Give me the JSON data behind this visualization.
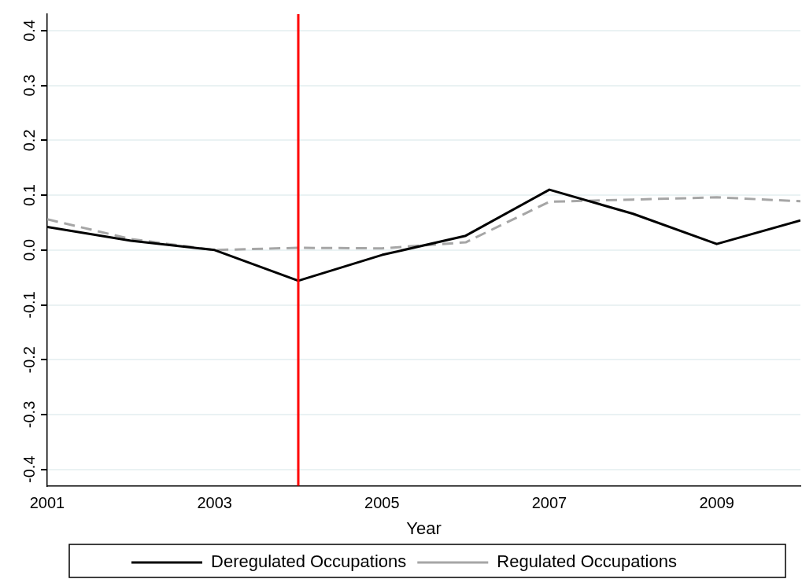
{
  "chart_data": {
    "type": "line",
    "xlabel": "Year",
    "x": [
      2001,
      2002,
      2003,
      2004,
      2005,
      2006,
      2007,
      2008,
      2009,
      2010
    ],
    "series": [
      {
        "name": "Deregulated Occupations",
        "color": "#000000",
        "line_style": "solid",
        "values": [
          0.042,
          0.017,
          0.0,
          -0.056,
          -0.009,
          0.026,
          0.11,
          0.066,
          0.011,
          0.054
        ]
      },
      {
        "name": "Regulated Occupations",
        "color": "#a6a6a6",
        "line_style": "dashed",
        "values": [
          0.056,
          0.02,
          0.0,
          0.004,
          0.003,
          0.014,
          0.088,
          0.092,
          0.096,
          0.089
        ]
      }
    ],
    "xlim": [
      2001,
      2010
    ],
    "xticks": [
      2001,
      2003,
      2005,
      2007,
      2009
    ],
    "ylim": [
      -0.43,
      0.43
    ],
    "yticks": [
      -0.4,
      -0.3,
      -0.2,
      -0.1,
      {
        "value": 0,
        "label": "0.0"
      },
      0.1,
      0.2,
      0.3,
      0.4
    ],
    "ref_lines": [
      {
        "axis": "x",
        "value": 2004,
        "color": "#ff0000"
      }
    ],
    "grid": "y",
    "legend": "bottom",
    "marker": "none"
  }
}
